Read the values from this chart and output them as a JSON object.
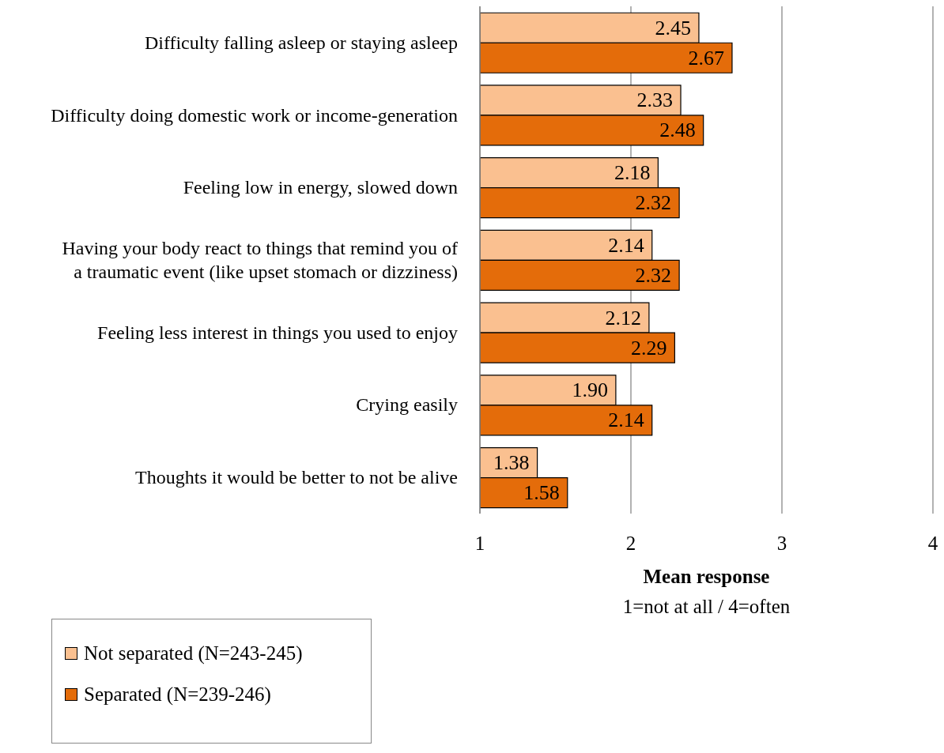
{
  "chart_data": {
    "type": "bar",
    "orientation": "horizontal",
    "categories": [
      "Difficulty falling asleep or staying asleep",
      "Difficulty doing domestic work or income-generation",
      "Feeling low in energy, slowed down",
      "Having your body react to things that remind you of a traumatic event (like upset stomach or dizziness)",
      "Feeling less interest in things you used to enjoy",
      "Crying easily",
      "Thoughts it would be better to not be alive"
    ],
    "series": [
      {
        "name": "Not separated (N=243-245)",
        "color": "#fac090",
        "values": [
          2.45,
          2.33,
          2.18,
          2.14,
          2.12,
          1.9,
          1.38
        ],
        "value_labels": [
          "2.45",
          "2.33",
          "2.18",
          "2.14",
          "2.12",
          "1.90",
          "1.38"
        ]
      },
      {
        "name": "Separated (N=239-246)",
        "color": "#e46c0a",
        "values": [
          2.67,
          2.48,
          2.32,
          2.32,
          2.29,
          2.14,
          1.58
        ],
        "value_labels": [
          "2.67",
          "2.48",
          "2.32",
          "2.32",
          "2.29",
          "2.14",
          "1.58"
        ]
      }
    ],
    "xlim": [
      1,
      4
    ],
    "xticks": [
      1,
      2,
      3,
      4
    ],
    "grid": "x",
    "legend": "bottom left",
    "xlabel": "Mean response",
    "annotations": [
      "1=not at all / 4=often"
    ]
  }
}
